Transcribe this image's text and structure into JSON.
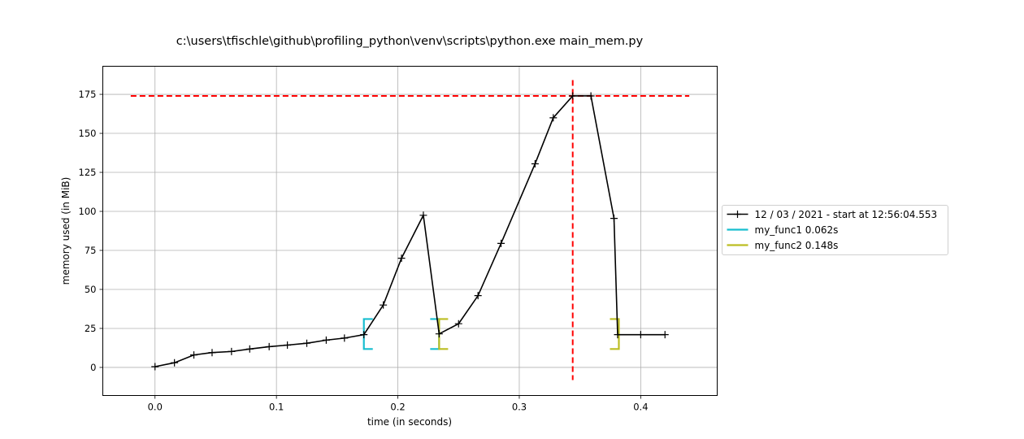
{
  "chart_data": {
    "type": "line",
    "title": "c:\\users\\tfischle\\github\\profiling_python\\venv\\scripts\\python.exe main_mem.py",
    "xlabel": "time (in seconds)",
    "ylabel": "memory used (in MiB)",
    "xlim": [
      -0.043,
      0.463
    ],
    "ylim": [
      -18,
      193
    ],
    "xticks": [
      0.0,
      0.1,
      0.2,
      0.3,
      0.4
    ],
    "xtick_labels": [
      "0.0",
      "0.1",
      "0.2",
      "0.3",
      "0.4"
    ],
    "yticks": [
      0,
      25,
      50,
      75,
      100,
      125,
      150,
      175
    ],
    "ytick_labels": [
      "0",
      "25",
      "50",
      "75",
      "100",
      "125",
      "150",
      "175"
    ],
    "grid": true,
    "legend_position": "outside-right",
    "series": [
      {
        "name": "12 / 03 / 2021 - start at 12:56:04.553",
        "color": "#000000",
        "marker": "plus",
        "x": [
          0.0,
          0.016,
          0.032,
          0.047,
          0.063,
          0.078,
          0.094,
          0.109,
          0.125,
          0.141,
          0.156,
          0.172,
          0.188,
          0.203,
          0.221,
          0.234,
          0.25,
          0.266,
          0.285,
          0.313,
          0.328,
          0.344,
          0.359,
          0.378,
          0.381,
          0.4,
          0.42
        ],
        "y": [
          0.5,
          3,
          8,
          9.5,
          10.2,
          11.8,
          13.3,
          14.3,
          15.5,
          17.5,
          18.8,
          21,
          40,
          70,
          97.5,
          21.5,
          28,
          46,
          79.5,
          130.5,
          160,
          174,
          174,
          95.5,
          21,
          21,
          21
        ]
      }
    ],
    "function_markers": [
      {
        "name": "my_func1 0.062s",
        "color": "#17becf",
        "start": 0.172,
        "end": 0.234,
        "y_low": 11.8,
        "y_high": 31
      },
      {
        "name": "my_func2 0.148s",
        "color": "#bcbd22",
        "start": 0.234,
        "end": 0.382,
        "y_low": 11.8,
        "y_high": 31
      }
    ],
    "max_memory": {
      "value": 174,
      "time": 0.344,
      "color": "#ff0000",
      "h_range": [
        -0.02,
        0.44
      ]
    }
  }
}
